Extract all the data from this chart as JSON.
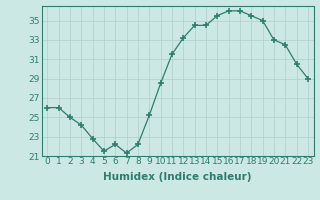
{
  "x": [
    0,
    1,
    2,
    3,
    4,
    5,
    6,
    7,
    8,
    9,
    10,
    11,
    12,
    13,
    14,
    15,
    16,
    17,
    18,
    19,
    20,
    21,
    22,
    23
  ],
  "y": [
    26,
    26,
    25,
    24.2,
    22.8,
    21.5,
    22.2,
    21.3,
    22.2,
    25.2,
    28.5,
    31.5,
    33.2,
    34.5,
    34.5,
    35.5,
    36,
    36,
    35.5,
    35,
    33,
    32.5,
    30.5,
    29
  ],
  "xlabel": "Humidex (Indice chaleur)",
  "ylim": [
    21,
    36.5
  ],
  "xlim": [
    -0.5,
    23.5
  ],
  "yticks": [
    21,
    23,
    25,
    27,
    29,
    31,
    33,
    35
  ],
  "xticks": [
    0,
    1,
    2,
    3,
    4,
    5,
    6,
    7,
    8,
    9,
    10,
    11,
    12,
    13,
    14,
    15,
    16,
    17,
    18,
    19,
    20,
    21,
    22,
    23
  ],
  "line_color": "#2e7d6e",
  "marker": "+",
  "marker_size": 4,
  "marker_linewidth": 1.2,
  "bg_color": "#cce8e4",
  "grid_color": "#aececa",
  "tick_label_fontsize": 6.5,
  "xlabel_fontsize": 7.5
}
